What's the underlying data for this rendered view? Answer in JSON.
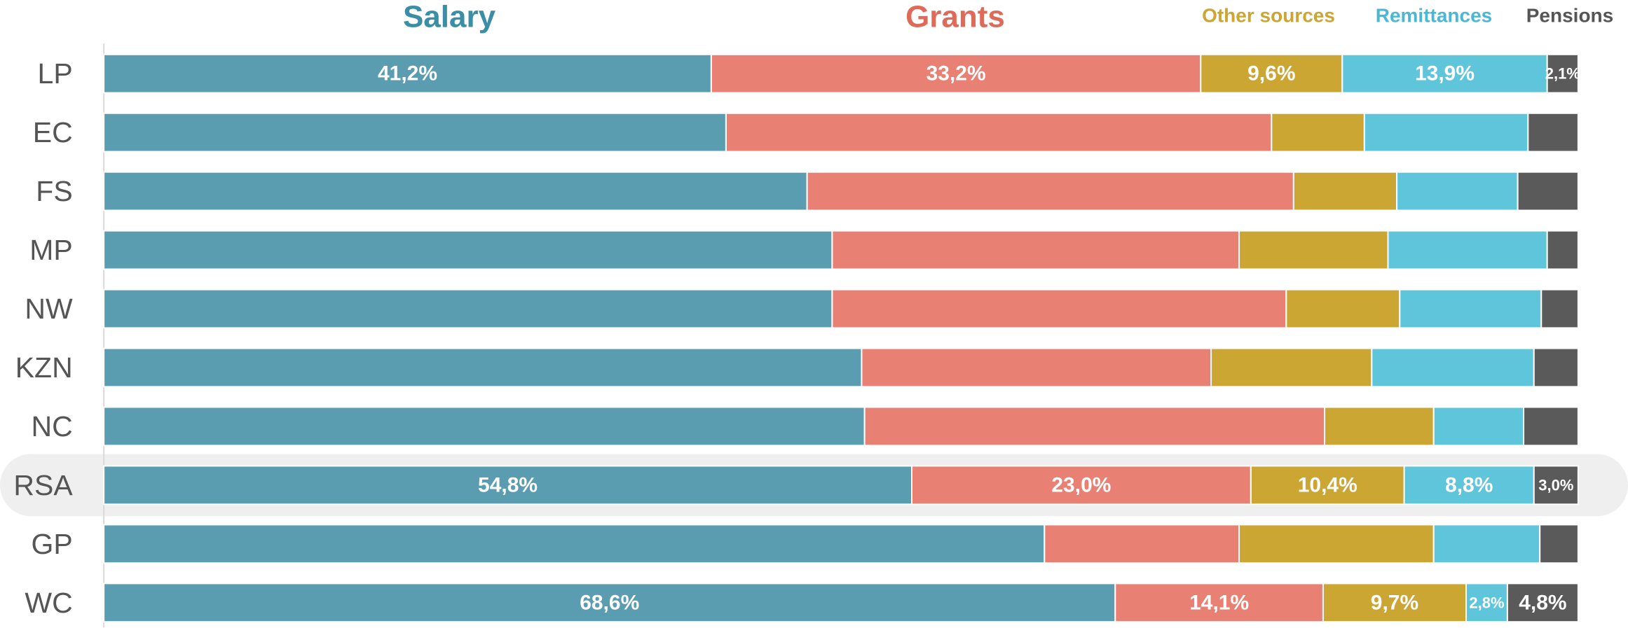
{
  "chart_data": {
    "type": "stacked_bar_horizontal",
    "categories": [
      "LP",
      "EC",
      "FS",
      "MP",
      "NW",
      "KZN",
      "NC",
      "RSA",
      "GP",
      "WC"
    ],
    "highlight": "RSA",
    "xlim": [
      0,
      100
    ],
    "series": [
      {
        "name": "Salary",
        "color": "#5b9db0",
        "values": [
          41.2,
          42.2,
          47.7,
          49.4,
          49.4,
          51.4,
          51.6,
          54.8,
          63.8,
          68.6
        ],
        "value_labels": [
          "41,2%",
          null,
          null,
          null,
          null,
          null,
          null,
          "54,8%",
          null,
          "68,6%"
        ]
      },
      {
        "name": "Grants",
        "color": "#e88074",
        "values": [
          33.2,
          37.0,
          33.0,
          27.6,
          30.8,
          23.7,
          31.2,
          23.0,
          13.2,
          14.1
        ],
        "value_labels": [
          "33,2%",
          null,
          null,
          null,
          null,
          null,
          null,
          "23,0%",
          null,
          "14,1%"
        ]
      },
      {
        "name": "Other sources",
        "color": "#cba632",
        "values": [
          9.6,
          6.3,
          7.0,
          10.1,
          7.7,
          10.9,
          7.4,
          10.4,
          13.2,
          9.7
        ],
        "value_labels": [
          "9,6%",
          null,
          null,
          null,
          null,
          null,
          null,
          "10,4%",
          null,
          "9,7%"
        ]
      },
      {
        "name": "Remittances",
        "color": "#5ec5da",
        "values": [
          13.9,
          11.1,
          8.2,
          10.8,
          9.6,
          11.0,
          6.1,
          8.8,
          7.2,
          2.8
        ],
        "value_labels": [
          "13,9%",
          null,
          null,
          null,
          null,
          null,
          null,
          "8,8%",
          null,
          "2,8%"
        ]
      },
      {
        "name": "Pensions",
        "color": "#5a5a5a",
        "values": [
          2.1,
          3.4,
          4.1,
          2.1,
          2.5,
          3.0,
          3.7,
          3.0,
          2.6,
          4.8
        ],
        "value_labels": [
          "2,1%",
          null,
          null,
          null,
          null,
          null,
          null,
          "3,0%",
          null,
          "4,8%"
        ]
      }
    ]
  }
}
